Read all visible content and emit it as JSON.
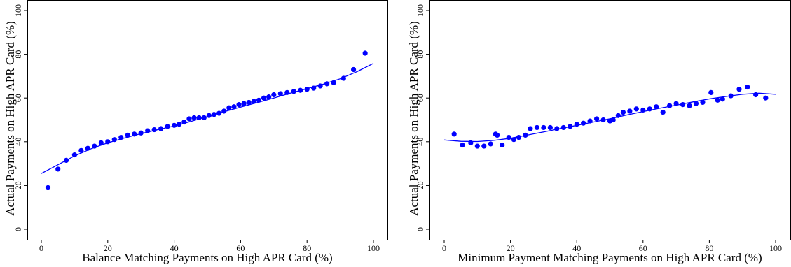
{
  "chart_data": [
    {
      "type": "scatter",
      "title": "",
      "xlabel": "Balance Matching Payments on High APR Card (%)",
      "ylabel": "Actual Payments on High APR Card (%)",
      "xlim": [
        0,
        100
      ],
      "ylim": [
        0,
        100
      ],
      "xticks": [
        "0",
        "20",
        "40",
        "60",
        "80",
        "100"
      ],
      "yticks": [
        "0",
        "20",
        "40",
        "60",
        "80",
        "100"
      ],
      "grid": false,
      "color": "#0000ff",
      "series": [
        {
          "points": [
            [
              2,
              19
            ],
            [
              5,
              27.5
            ],
            [
              7.5,
              31.5
            ],
            [
              10,
              34
            ],
            [
              12,
              36
            ],
            [
              14,
              37
            ],
            [
              16,
              38
            ],
            [
              18,
              39.5
            ],
            [
              20,
              40
            ],
            [
              22,
              41
            ],
            [
              24,
              42
            ],
            [
              26,
              43
            ],
            [
              28,
              43.5
            ],
            [
              30,
              44
            ],
            [
              32,
              45
            ],
            [
              34,
              45.5
            ],
            [
              36,
              46
            ],
            [
              38,
              47
            ],
            [
              40,
              47.5
            ],
            [
              41.5,
              48
            ],
            [
              43,
              49
            ],
            [
              44.5,
              50.5
            ],
            [
              46,
              51
            ],
            [
              47.5,
              51
            ],
            [
              49,
              51
            ],
            [
              50.5,
              52
            ],
            [
              52,
              52.5
            ],
            [
              53.5,
              53
            ],
            [
              55,
              54
            ],
            [
              56.5,
              55.5
            ],
            [
              58,
              56
            ],
            [
              59.5,
              57
            ],
            [
              61,
              57.5
            ],
            [
              62.5,
              58
            ],
            [
              64,
              58.5
            ],
            [
              65.5,
              59
            ],
            [
              67,
              60
            ],
            [
              68.5,
              60.5
            ],
            [
              70,
              61.5
            ],
            [
              72,
              62
            ],
            [
              74,
              62.5
            ],
            [
              76,
              63
            ],
            [
              78,
              63.5
            ],
            [
              80,
              64
            ],
            [
              82,
              64.5
            ],
            [
              84,
              65.5
            ],
            [
              86,
              66.5
            ],
            [
              88,
              67
            ],
            [
              91,
              69
            ],
            [
              94,
              73
            ],
            [
              97.5,
              80.5
            ]
          ],
          "fit": [
            [
              0,
              25.5
            ],
            [
              5,
              29.5
            ],
            [
              10,
              33.5
            ],
            [
              15,
              36.8
            ],
            [
              20,
              39.5
            ],
            [
              25,
              41.7
            ],
            [
              30,
              43.7
            ],
            [
              35,
              45.5
            ],
            [
              40,
              47.2
            ],
            [
              45,
              49.3
            ],
            [
              50,
              51.5
            ],
            [
              55,
              53.7
            ],
            [
              60,
              55.8
            ],
            [
              65,
              57.9
            ],
            [
              70,
              60
            ],
            [
              75,
              62.2
            ],
            [
              80,
              64.3
            ],
            [
              85,
              66.4
            ],
            [
              90,
              68.8
            ],
            [
              95,
              72
            ],
            [
              100,
              75.8
            ]
          ]
        }
      ]
    },
    {
      "type": "scatter",
      "title": "",
      "xlabel": "Minimum Payment Matching Payments on High APR Card (%)",
      "ylabel": "Actual Payments on High APR Card (%)",
      "xlim": [
        0,
        100
      ],
      "ylim": [
        0,
        100
      ],
      "xticks": [
        "0",
        "20",
        "40",
        "60",
        "80",
        "100"
      ],
      "yticks": [
        "0",
        "20",
        "40",
        "60",
        "80",
        "100"
      ],
      "grid": false,
      "color": "#0000ff",
      "series": [
        {
          "points": [
            [
              3,
              43.5
            ],
            [
              5.5,
              38.5
            ],
            [
              8,
              39.5
            ],
            [
              10,
              38
            ],
            [
              12,
              38
            ],
            [
              14,
              39
            ],
            [
              15.5,
              43.5
            ],
            [
              16,
              43
            ],
            [
              17.5,
              38.5
            ],
            [
              19.5,
              42
            ],
            [
              21,
              41
            ],
            [
              22.5,
              42
            ],
            [
              24.5,
              43
            ],
            [
              26,
              46
            ],
            [
              28,
              46.5
            ],
            [
              30,
              46.5
            ],
            [
              32,
              46.5
            ],
            [
              34,
              46
            ],
            [
              36,
              46.5
            ],
            [
              38,
              47
            ],
            [
              40,
              48
            ],
            [
              42,
              48.5
            ],
            [
              44,
              49.5
            ],
            [
              46,
              50.5
            ],
            [
              48,
              50
            ],
            [
              50,
              49.5
            ],
            [
              51,
              50
            ],
            [
              52.5,
              52
            ],
            [
              54,
              53.5
            ],
            [
              56,
              54
            ],
            [
              58,
              55
            ],
            [
              60,
              54.5
            ],
            [
              62,
              55
            ],
            [
              64,
              56
            ],
            [
              66,
              53.5
            ],
            [
              68,
              56.5
            ],
            [
              70,
              57.5
            ],
            [
              72,
              57
            ],
            [
              74,
              56.5
            ],
            [
              76,
              57.5
            ],
            [
              78,
              58
            ],
            [
              80.5,
              62.5
            ],
            [
              82.5,
              59
            ],
            [
              84,
              59.5
            ],
            [
              86.5,
              61
            ],
            [
              89,
              64
            ],
            [
              91.5,
              65
            ],
            [
              94,
              61.5
            ],
            [
              97,
              60
            ]
          ],
          "fit": [
            [
              0,
              40.8
            ],
            [
              5,
              40.2
            ],
            [
              10,
              40.1
            ],
            [
              15,
              40.6
            ],
            [
              20,
              41.6
            ],
            [
              25,
              43
            ],
            [
              30,
              44.5
            ],
            [
              35,
              46
            ],
            [
              40,
              47.5
            ],
            [
              45,
              49
            ],
            [
              50,
              50.5
            ],
            [
              55,
              52.2
            ],
            [
              60,
              53.8
            ],
            [
              65,
              55.3
            ],
            [
              70,
              56.7
            ],
            [
              75,
              58.2
            ],
            [
              80,
              59.6
            ],
            [
              85,
              60.7
            ],
            [
              90,
              61.7
            ],
            [
              95,
              62.2
            ],
            [
              100,
              61.7
            ]
          ]
        }
      ]
    }
  ]
}
